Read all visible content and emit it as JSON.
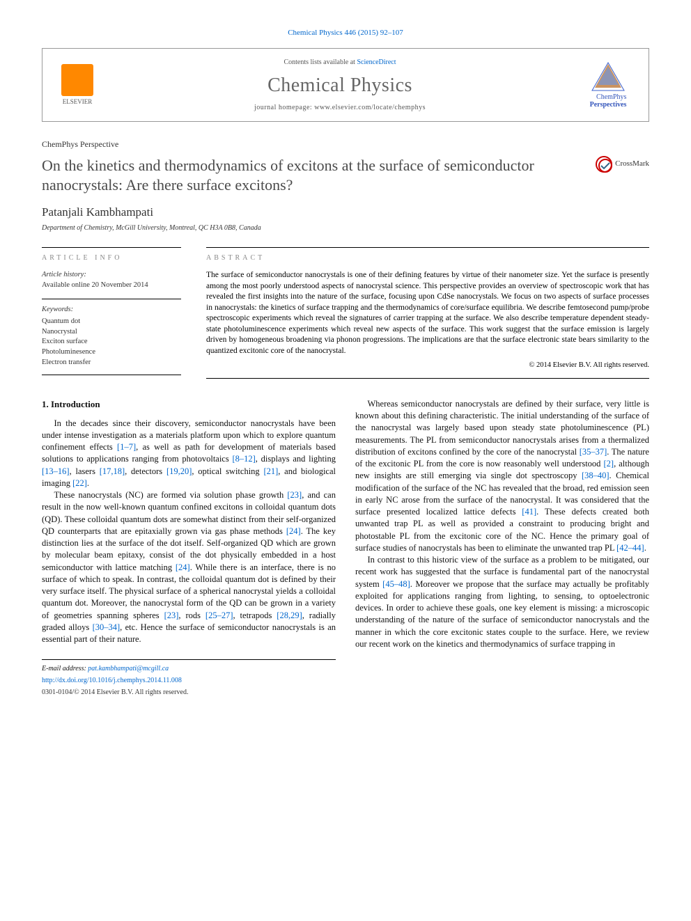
{
  "journal_ref": "Chemical Physics 446 (2015) 92–107",
  "header": {
    "contents_prefix": "Contents lists available at ",
    "contents_link": "ScienceDirect",
    "journal_title": "Chemical Physics",
    "homepage_prefix": "journal homepage: ",
    "homepage_url": "www.elsevier.com/locate/chemphys",
    "publisher_name": "ELSEVIER",
    "brand_line1": "ChemPhys",
    "brand_line2": "Perspectives",
    "publisher_logo_color": "#ff8800",
    "brand_triangle_colors": [
      "#3a5fcd",
      "#b5651d",
      "#6495ed"
    ]
  },
  "article": {
    "type": "ChemPhys Perspective",
    "title": "On the kinetics and thermodynamics of excitons at the surface of semiconductor nanocrystals: Are there surface excitons?",
    "crossmark_label": "CrossMark",
    "author": "Patanjali Kambhampati",
    "affiliation": "Department of Chemistry, McGill University, Montreal, QC H3A 0B8, Canada"
  },
  "info": {
    "heading": "article info",
    "history_label": "Article history:",
    "history_text": "Available online 20 November 2014",
    "keywords_label": "Keywords:",
    "keywords": [
      "Quantum dot",
      "Nanocrystal",
      "Exciton surface",
      "Photoluminesence",
      "Electron transfer"
    ]
  },
  "abstract": {
    "heading": "abstract",
    "text": "The surface of semiconductor nanocrystals is one of their defining features by virtue of their nanometer size. Yet the surface is presently among the most poorly understood aspects of nanocrystal science. This perspective provides an overview of spectroscopic work that has revealed the first insights into the nature of the surface, focusing upon CdSe nanocrystals. We focus on two aspects of surface processes in nanocrystals: the kinetics of surface trapping and the thermodynamics of core/surface equilibria. We describe femtosecond pump/probe spectroscopic experiments which reveal the signatures of carrier trapping at the surface. We also describe temperature dependent steady-state photoluminescence experiments which reveal new aspects of the surface. This work suggest that the surface emission is largely driven by homogeneous broadening via phonon progressions. The implications are that the surface electronic state bears similarity to the quantized excitonic core of the nanocrystal.",
    "copyright": "© 2014 Elsevier B.V. All rights reserved."
  },
  "body": {
    "intro_heading": "1. Introduction",
    "left_paragraphs": [
      "In the decades since their discovery, semiconductor nanocrystals have been under intense investigation as a materials platform upon which to explore quantum confinement effects [1–7], as well as path for development of materials based solutions to applications ranging from photovoltaics [8–12], displays and lighting [13–16], lasers [17,18], detectors [19,20], optical switching [21], and biological imaging [22].",
      "These nanocrystals (NC) are formed via solution phase growth [23], and can result in the now well-known quantum confined excitons in colloidal quantum dots (QD). These colloidal quantum dots are somewhat distinct from their self-organized QD counterparts that are epitaxially grown via gas phase methods [24]. The key distinction lies at the surface of the dot itself. Self-organized QD which are grown by molecular beam epitaxy, consist of the dot physically embedded in a host semiconductor with lattice matching [24]. While there is an interface, there is no surface of which to speak. In contrast, the colloidal quantum dot is defined by their very surface itself. The physical surface of a spherical nanocrystal yields a colloidal quantum dot. Moreover, the nanocrystal form of the QD can be grown in a variety of geometries spanning spheres [23], rods [25–27], tetrapods [28,29], radially graded alloys [30–34], etc. Hence the surface of semiconductor nanocrystals is an essential part of their nature."
    ],
    "right_paragraphs": [
      "Whereas semiconductor nanocrystals are defined by their surface, very little is known about this defining characteristic. The initial understanding of the surface of the nanocrystal was largely based upon steady state photoluminescence (PL) measurements. The PL from semiconductor nanocrystals arises from a thermalized distribution of excitons confined by the core of the nanocrystal [35–37]. The nature of the excitonic PL from the core is now reasonably well understood [2], although new insights are still emerging via single dot spectroscopy [38–40]. Chemical modification of the surface of the NC has revealed that the broad, red emission seen in early NC arose from the surface of the nanocrystal. It was considered that the surface presented localized lattice defects [41]. These defects created both unwanted trap PL as well as provided a constraint to producing bright and photostable PL from the excitonic core of the NC. Hence the primary goal of surface studies of nanocrystals has been to eliminate the unwanted trap PL [42–44].",
      "In contrast to this historic view of the surface as a problem to be mitigated, our recent work has suggested that the surface is fundamental part of the nanocrystal system [45–48]. Moreover we propose that the surface may actually be profitably exploited for applications ranging from lighting, to sensing, to optoelectronic devices. In order to achieve these goals, one key element is missing: a microscopic understanding of the nature of the surface of semiconductor nanocrystals and the manner in which the core excitonic states couple to the surface. Here, we review our recent work on the kinetics and thermodynamics of surface trapping in"
    ],
    "ref_color": "#0066cc"
  },
  "footer": {
    "email_label": "E-mail address: ",
    "email": "pat.kambhampati@mcgill.ca",
    "doi": "http://dx.doi.org/10.1016/j.chemphys.2014.11.008",
    "issn_copyright": "0301-0104/© 2014 Elsevier B.V. All rights reserved."
  },
  "colors": {
    "link": "#0066cc",
    "title_gray": "#4a4a4a",
    "label_gray": "#888888",
    "text": "#000000"
  }
}
